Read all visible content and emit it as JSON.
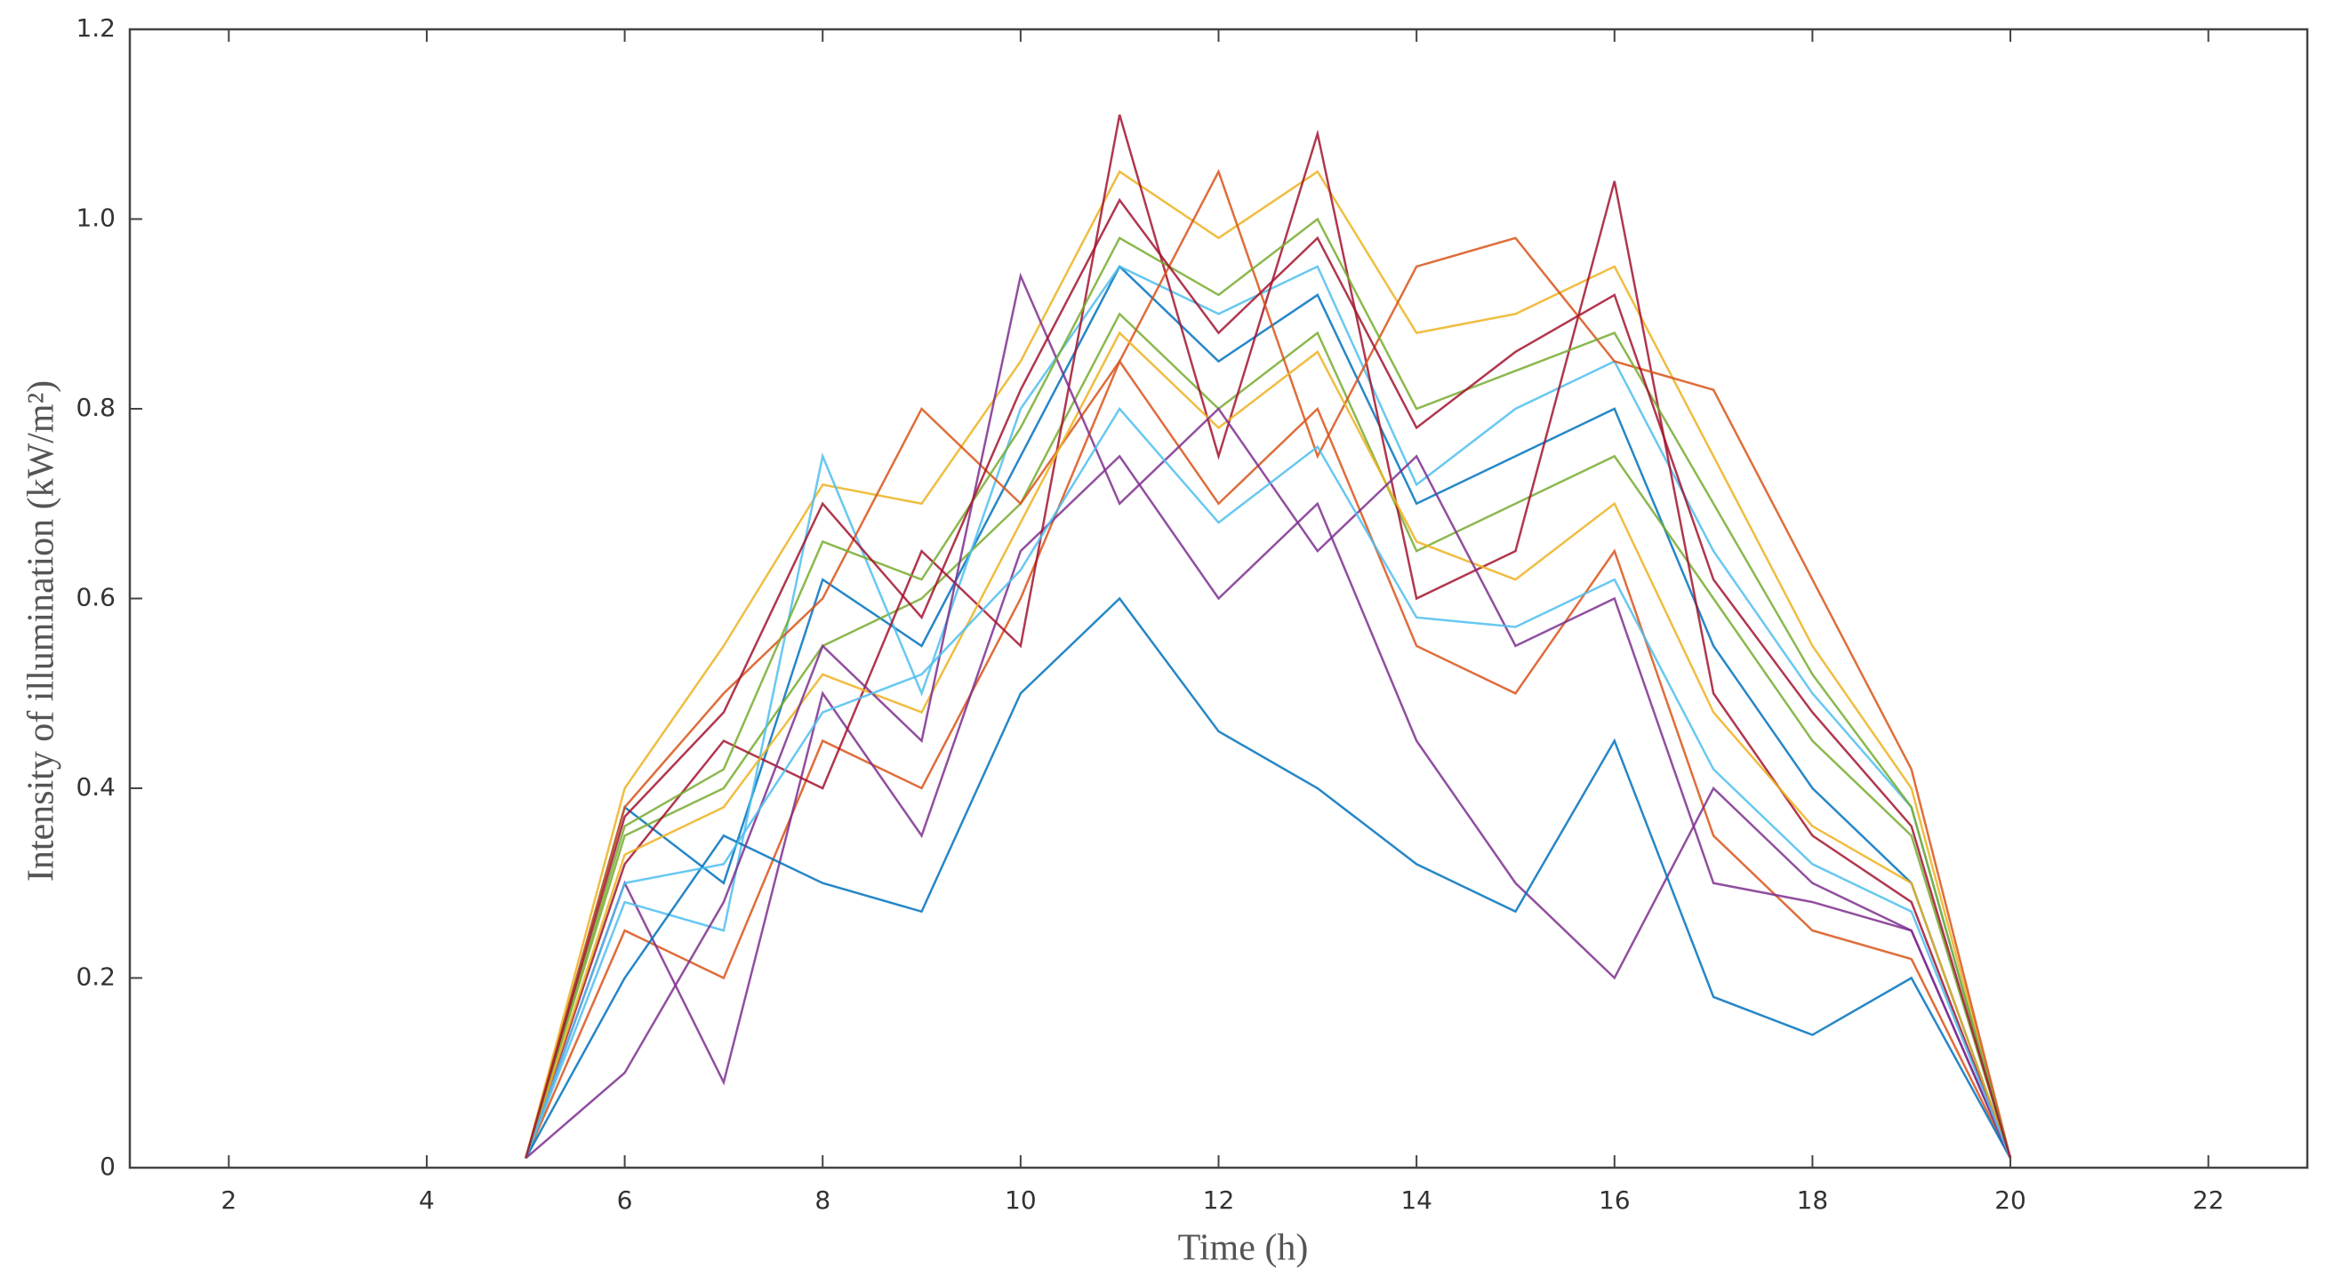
{
  "chart_data": {
    "type": "line",
    "x_label": "Time (h)",
    "y_label": "Intensity of illumination (kW/m²)",
    "x": [
      5,
      6,
      7,
      8,
      9,
      10,
      11,
      12,
      13,
      14,
      15,
      16,
      17,
      18,
      19,
      20
    ],
    "series": [
      {
        "color": "#0072BD",
        "values": [
          0.01,
          0.38,
          0.3,
          0.62,
          0.55,
          0.75,
          0.95,
          0.85,
          0.92,
          0.7,
          0.75,
          0.8,
          0.55,
          0.4,
          0.3,
          0.01
        ]
      },
      {
        "color": "#D95319",
        "values": [
          0.01,
          0.25,
          0.2,
          0.45,
          0.4,
          0.6,
          0.85,
          0.7,
          0.8,
          0.55,
          0.5,
          0.65,
          0.35,
          0.25,
          0.22,
          0.01
        ]
      },
      {
        "color": "#EDB120",
        "values": [
          0.01,
          0.4,
          0.55,
          0.72,
          0.7,
          0.85,
          1.05,
          0.98,
          1.05,
          0.88,
          0.9,
          0.95,
          0.75,
          0.55,
          0.4,
          0.01
        ]
      },
      {
        "color": "#7E2F8E",
        "values": [
          0.01,
          0.3,
          0.09,
          0.5,
          0.35,
          0.65,
          0.75,
          0.6,
          0.7,
          0.45,
          0.3,
          0.2,
          0.4,
          0.3,
          0.25,
          0.01
        ]
      },
      {
        "color": "#77AC30",
        "values": [
          0.01,
          0.35,
          0.4,
          0.55,
          0.6,
          0.7,
          0.9,
          0.8,
          0.88,
          0.65,
          0.7,
          0.75,
          0.6,
          0.45,
          0.35,
          0.01
        ]
      },
      {
        "color": "#4DBEEE",
        "values": [
          0.01,
          0.28,
          0.25,
          0.75,
          0.5,
          0.8,
          0.95,
          0.9,
          0.95,
          0.72,
          0.8,
          0.85,
          0.65,
          0.5,
          0.38,
          0.01
        ]
      },
      {
        "color": "#A2142F",
        "values": [
          0.01,
          0.32,
          0.45,
          0.4,
          0.65,
          0.55,
          1.11,
          0.75,
          1.09,
          0.6,
          0.65,
          1.04,
          0.5,
          0.35,
          0.28,
          0.01
        ]
      },
      {
        "color": "#0072BD",
        "values": [
          0.01,
          0.2,
          0.35,
          0.3,
          0.27,
          0.5,
          0.6,
          0.46,
          0.4,
          0.32,
          0.27,
          0.45,
          0.18,
          0.14,
          0.2,
          0.01
        ]
      },
      {
        "color": "#D95319",
        "values": [
          0.01,
          0.38,
          0.5,
          0.6,
          0.8,
          0.7,
          0.85,
          1.05,
          0.75,
          0.95,
          0.98,
          0.85,
          0.82,
          0.62,
          0.42,
          0.01
        ]
      },
      {
        "color": "#EDB120",
        "values": [
          0.01,
          0.33,
          0.38,
          0.52,
          0.48,
          0.68,
          0.88,
          0.78,
          0.86,
          0.66,
          0.62,
          0.7,
          0.48,
          0.36,
          0.3,
          0.01
        ]
      },
      {
        "color": "#7E2F8E",
        "values": [
          0.01,
          0.1,
          0.28,
          0.55,
          0.45,
          0.94,
          0.7,
          0.8,
          0.65,
          0.75,
          0.55,
          0.6,
          0.3,
          0.28,
          0.25,
          0.01
        ]
      },
      {
        "color": "#77AC30",
        "values": [
          0.01,
          0.36,
          0.42,
          0.66,
          0.62,
          0.78,
          0.98,
          0.92,
          1.0,
          0.8,
          0.84,
          0.88,
          0.7,
          0.52,
          0.38,
          0.01
        ]
      },
      {
        "color": "#4DBEEE",
        "values": [
          0.01,
          0.3,
          0.32,
          0.48,
          0.52,
          0.63,
          0.8,
          0.68,
          0.76,
          0.58,
          0.57,
          0.62,
          0.42,
          0.32,
          0.27,
          0.01
        ]
      },
      {
        "color": "#A2142F",
        "values": [
          0.01,
          0.37,
          0.48,
          0.7,
          0.58,
          0.82,
          1.02,
          0.88,
          0.98,
          0.78,
          0.86,
          0.92,
          0.62,
          0.48,
          0.36,
          0.01
        ]
      }
    ],
    "xlim": [
      1,
      23
    ],
    "xticks": [
      2,
      4,
      6,
      8,
      10,
      12,
      14,
      16,
      18,
      20,
      22
    ],
    "ylim": [
      0,
      1.2
    ],
    "yticks": [
      0,
      0.2,
      0.4,
      0.6,
      0.8,
      {
        "value": 1,
        "label": "1.0"
      },
      1.2
    ]
  }
}
